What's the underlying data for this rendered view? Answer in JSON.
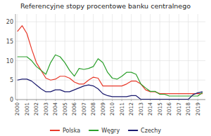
{
  "chart_data": {
    "type": "line",
    "title": "Referencyjne stopy procentowe banku centralnego",
    "x": [
      2000,
      2000.5,
      2001,
      2001.5,
      2002,
      2002.5,
      2003,
      2003.5,
      2004,
      2004.5,
      2005,
      2005.5,
      2006,
      2006.5,
      2007,
      2007.5,
      2008,
      2008.5,
      2009,
      2009.5,
      2010,
      2010.5,
      2011,
      2011.5,
      2012,
      2012.5,
      2013,
      2013.5,
      2014,
      2014.5,
      2015,
      2015.5,
      2016,
      2016.5,
      2017,
      2017.5,
      2018,
      2018.5,
      2019,
      2019.5
    ],
    "series": [
      {
        "name": "Polska",
        "color": "#e8392a",
        "values": [
          17.5,
          19.0,
          17.0,
          13.0,
          9.5,
          7.5,
          5.5,
          5.0,
          5.25,
          6.0,
          6.0,
          5.5,
          4.5,
          4.0,
          4.0,
          5.0,
          5.75,
          5.5,
          3.5,
          3.5,
          3.5,
          3.5,
          3.5,
          4.0,
          4.75,
          4.75,
          4.0,
          2.5,
          2.0,
          2.0,
          1.5,
          1.5,
          1.5,
          1.5,
          1.5,
          1.5,
          1.5,
          1.5,
          1.5,
          1.5
        ]
      },
      {
        "name": "Węgry",
        "color": "#2ca02c",
        "values": [
          11.0,
          11.0,
          11.0,
          10.0,
          8.5,
          7.5,
          6.5,
          9.5,
          11.5,
          11.0,
          9.5,
          7.5,
          6.0,
          8.0,
          7.75,
          8.0,
          8.5,
          10.5,
          9.5,
          7.0,
          5.5,
          5.25,
          6.0,
          7.0,
          7.0,
          6.5,
          4.0,
          3.0,
          2.1,
          2.1,
          1.35,
          1.35,
          0.9,
          0.9,
          0.9,
          0.9,
          0.9,
          0.9,
          0.9,
          1.8
        ]
      },
      {
        "name": "Czechy",
        "color": "#1a1a6e",
        "values": [
          5.0,
          5.25,
          5.25,
          4.75,
          3.75,
          2.75,
          2.0,
          2.0,
          2.5,
          2.5,
          2.0,
          2.0,
          2.5,
          3.0,
          3.5,
          3.75,
          3.5,
          2.75,
          1.5,
          1.0,
          0.75,
          0.75,
          0.75,
          0.75,
          1.0,
          1.0,
          0.05,
          0.05,
          0.05,
          0.05,
          0.05,
          0.05,
          0.05,
          0.05,
          0.05,
          0.05,
          0.05,
          1.25,
          1.75,
          2.0
        ]
      }
    ],
    "xlim": [
      1999.8,
      2019.8
    ],
    "ylim": [
      0,
      22
    ],
    "xticks": [
      2000,
      2001,
      2002,
      2003,
      2004,
      2005,
      2006,
      2007,
      2008,
      2009,
      2010,
      2011,
      2012,
      2013,
      2014,
      2015,
      2016,
      2017,
      2018,
      2019
    ],
    "yticks": [
      0,
      5,
      10,
      15,
      20
    ],
    "grid": true,
    "legend": "bottom"
  }
}
